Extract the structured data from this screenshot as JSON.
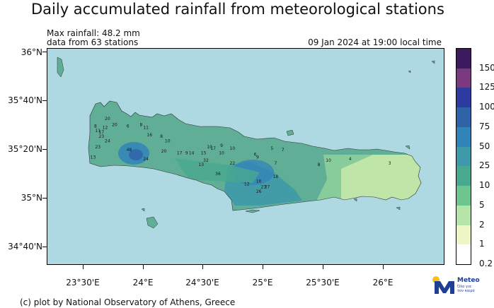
{
  "title": "Daily accumulated rainfall from meteorological stations",
  "max_rainfall": "Max rainfall: 48.2 mm",
  "station_count": "data from 63 stations",
  "timestamp": "09 Jan 2024 at 19:00 local time",
  "footer": "(c) plot by National Observatory of Athens, Greece",
  "logo": {
    "name": "Meteo",
    "tagline_line1": "Όλα για",
    "tagline_line2": "τον καιρό",
    "icon": "sun-dot-m-logo-icon"
  },
  "axes": {
    "lat_labels": [
      "36°N",
      "35°40'N",
      "35°20'N",
      "35°N",
      "34°40'N"
    ],
    "lon_labels": [
      "23°30'E",
      "24°E",
      "24°30'E",
      "25°E",
      "25°30'E",
      "26°E"
    ]
  },
  "colorbar": {
    "labels": [
      "150",
      "125",
      "100",
      "75",
      "50",
      "25",
      "10",
      "5",
      "2",
      "1",
      "0.2"
    ],
    "colors": [
      "#3b1a5e",
      "#7b3a7e",
      "#2e3b9e",
      "#2f63a8",
      "#3183b8",
      "#3e9aa8",
      "#48a98f",
      "#6fc58e",
      "#b5e5a9",
      "#eef6c5",
      "#ffffff"
    ]
  },
  "colors": {
    "sea": "#aed9e3",
    "land_base": "#5fae95",
    "land_light": "#bfe6a8",
    "land_dark": "#3a86a8"
  },
  "stations": [
    {
      "v": "20",
      "lon": 23.7,
      "lat": 35.52
    },
    {
      "v": "20",
      "lon": 23.76,
      "lat": 35.48
    },
    {
      "v": "12",
      "lon": 23.68,
      "lat": 35.46
    },
    {
      "v": "8",
      "lon": 23.6,
      "lat": 35.47
    },
    {
      "v": "11",
      "lon": 23.62,
      "lat": 35.44
    },
    {
      "v": "17",
      "lon": 23.65,
      "lat": 35.43
    },
    {
      "v": "23",
      "lon": 23.65,
      "lat": 35.4
    },
    {
      "v": "24",
      "lon": 23.7,
      "lat": 35.37
    },
    {
      "v": "23",
      "lon": 23.62,
      "lat": 35.33
    },
    {
      "v": "6",
      "lon": 23.87,
      "lat": 35.47
    },
    {
      "v": "8",
      "lon": 23.98,
      "lat": 35.48
    },
    {
      "v": "11",
      "lon": 24.02,
      "lat": 35.46
    },
    {
      "v": "16",
      "lon": 24.05,
      "lat": 35.41
    },
    {
      "v": "8",
      "lon": 24.15,
      "lat": 35.4
    },
    {
      "v": "10",
      "lon": 24.2,
      "lat": 35.37
    },
    {
      "v": "48",
      "lon": 23.88,
      "lat": 35.31
    },
    {
      "v": "20",
      "lon": 24.17,
      "lat": 35.3
    },
    {
      "v": "17",
      "lon": 24.3,
      "lat": 35.29
    },
    {
      "v": "9",
      "lon": 24.36,
      "lat": 35.29
    },
    {
      "v": "14",
      "lon": 24.4,
      "lat": 35.29
    },
    {
      "v": "15",
      "lon": 24.5,
      "lat": 35.29
    },
    {
      "v": "10",
      "lon": 24.55,
      "lat": 35.33
    },
    {
      "v": "17",
      "lon": 24.58,
      "lat": 35.32
    },
    {
      "v": "9",
      "lon": 24.65,
      "lat": 35.34
    },
    {
      "v": "10",
      "lon": 24.74,
      "lat": 35.32
    },
    {
      "v": "10",
      "lon": 24.65,
      "lat": 35.29
    },
    {
      "v": "24",
      "lon": 24.02,
      "lat": 35.25
    },
    {
      "v": "13",
      "lon": 23.58,
      "lat": 35.26
    },
    {
      "v": "32",
      "lon": 24.52,
      "lat": 35.24
    },
    {
      "v": "22",
      "lon": 24.74,
      "lat": 35.22
    },
    {
      "v": "36",
      "lon": 24.62,
      "lat": 35.15
    },
    {
      "v": "6",
      "lon": 24.93,
      "lat": 35.28
    },
    {
      "v": "5",
      "lon": 25.07,
      "lat": 35.32
    },
    {
      "v": "7",
      "lon": 25.16,
      "lat": 35.31
    },
    {
      "v": "9",
      "lon": 24.95,
      "lat": 35.26
    },
    {
      "v": "7",
      "lon": 25.1,
      "lat": 35.22
    },
    {
      "v": "18",
      "lon": 25.1,
      "lat": 35.13
    },
    {
      "v": "16",
      "lon": 24.96,
      "lat": 35.1
    },
    {
      "v": "12",
      "lon": 24.86,
      "lat": 35.08
    },
    {
      "v": "23",
      "lon": 25.0,
      "lat": 35.06
    },
    {
      "v": "27",
      "lon": 25.03,
      "lat": 35.06
    },
    {
      "v": "26",
      "lon": 24.96,
      "lat": 35.03
    },
    {
      "v": "8",
      "lon": 25.46,
      "lat": 35.21
    },
    {
      "v": "10",
      "lon": 25.54,
      "lat": 35.24
    },
    {
      "v": "4",
      "lon": 25.72,
      "lat": 35.25
    },
    {
      "v": "3",
      "lon": 26.05,
      "lat": 35.22
    },
    {
      "v": "13",
      "lon": 24.48,
      "lat": 35.21
    }
  ]
}
